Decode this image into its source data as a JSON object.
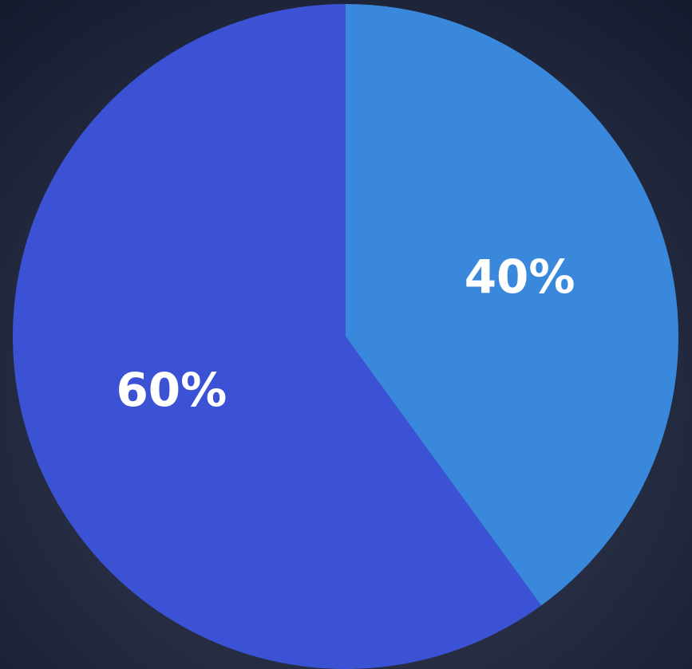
{
  "chart_data": {
    "type": "pie",
    "values": [
      40,
      60
    ],
    "value_labels": [
      "40%",
      "60%"
    ],
    "colors": [
      "#3a88dc",
      "#3b52d4"
    ]
  }
}
